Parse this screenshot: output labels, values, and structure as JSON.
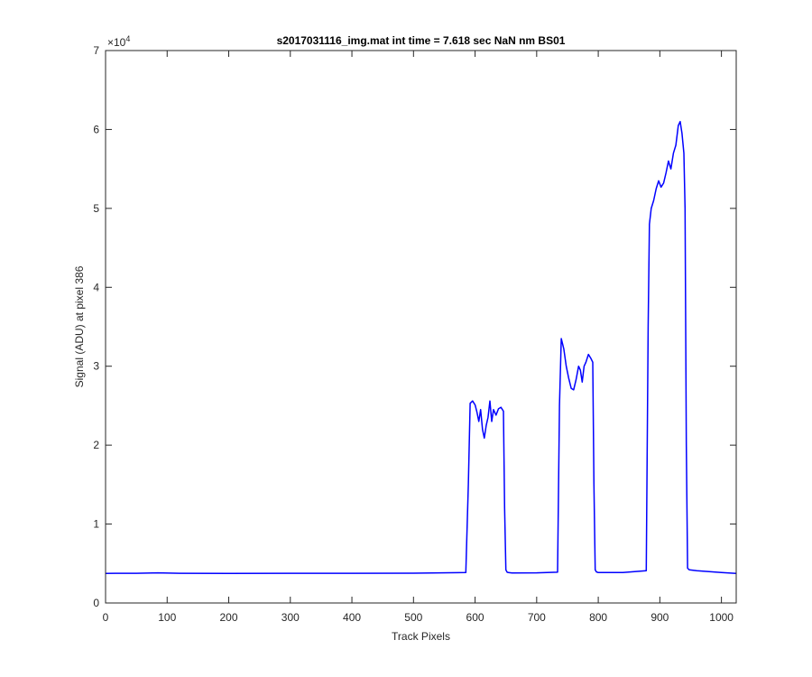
{
  "chart_data": {
    "type": "line",
    "title": "s2017031116_img.mat int time = 7.618 sec  NaN nm BS01",
    "xlabel": "Track Pixels",
    "ylabel": "Signal (ADU) at pixel 386",
    "xlim": [
      0,
      1024
    ],
    "ylim": [
      0,
      70000
    ],
    "x_ticks": [
      0,
      100,
      200,
      300,
      400,
      500,
      600,
      700,
      800,
      900,
      1000
    ],
    "y_ticks": [
      0,
      1,
      2,
      3,
      4,
      5,
      6,
      7
    ],
    "y_exponent_base": "×10",
    "y_exponent": "4",
    "grid": false,
    "line_color": "#0000ff",
    "series": [
      {
        "x": [
          0,
          50,
          85,
          120,
          200,
          300,
          400,
          500,
          585,
          589,
          592,
          596,
          600,
          603,
          606,
          609,
          612,
          615,
          618,
          621,
          624,
          627,
          630,
          634,
          638,
          642,
          646,
          648,
          650,
          652,
          654,
          660,
          700,
          734,
          737,
          740,
          744,
          748,
          752,
          756,
          760,
          764,
          768,
          771,
          774,
          777,
          780,
          784,
          788,
          791,
          793,
          795,
          797,
          800,
          840,
          878,
          881,
          883,
          886,
          890,
          894,
          898,
          902,
          906,
          910,
          914,
          918,
          922,
          926,
          930,
          933,
          936,
          939,
          941,
          943,
          945,
          948,
          960,
          1000,
          1024
        ],
        "y": [
          3750,
          3760,
          3820,
          3760,
          3740,
          3760,
          3760,
          3770,
          3850,
          15000,
          25300,
          25600,
          25100,
          24200,
          23000,
          24500,
          22000,
          20900,
          22500,
          23500,
          25600,
          23000,
          24500,
          23800,
          24600,
          24800,
          24300,
          12000,
          4200,
          3900,
          3850,
          3800,
          3820,
          3900,
          25000,
          33500,
          32200,
          30000,
          28500,
          27200,
          27000,
          28300,
          30000,
          29500,
          28000,
          30000,
          30500,
          31500,
          31000,
          30500,
          15000,
          4200,
          3950,
          3850,
          3850,
          4100,
          35000,
          48000,
          50000,
          51000,
          52500,
          53500,
          52700,
          53200,
          54500,
          56000,
          55000,
          57000,
          58000,
          60500,
          61000,
          59500,
          57000,
          50000,
          20000,
          4400,
          4200,
          4100,
          3850,
          3750
        ]
      }
    ]
  }
}
